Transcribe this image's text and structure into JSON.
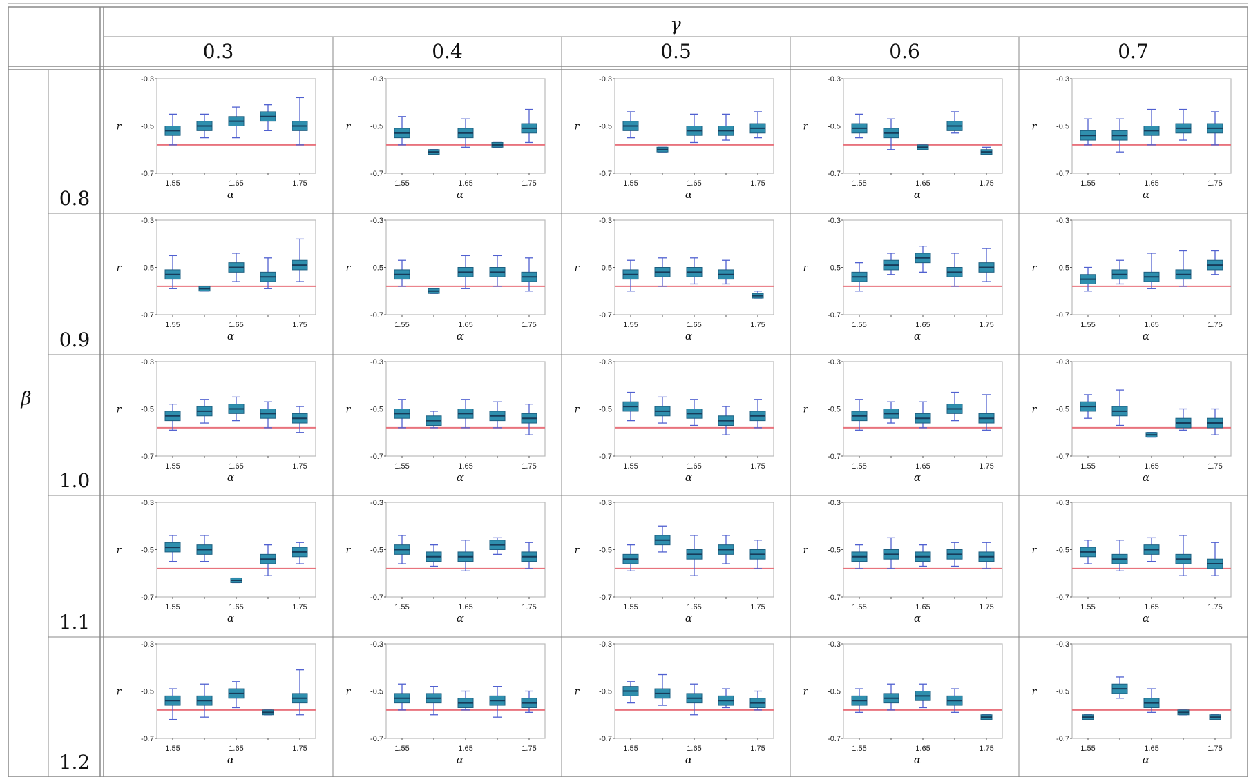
{
  "table": {
    "column_header_symbol": "γ",
    "row_header_symbol": "β",
    "gamma_values": [
      "0.3",
      "0.4",
      "0.5",
      "0.6",
      "0.7"
    ],
    "beta_values": [
      "0.8",
      "0.9",
      "1.0",
      "1.1",
      "1.2"
    ]
  },
  "chart_data": {
    "type": "box",
    "layout": "5x5 grid of small box plots (rows = β, columns = γ)",
    "panel_axes": {
      "xlabel": "α",
      "ylabel": "r",
      "x_ticks": [
        "1.55",
        "1.65",
        "1.75"
      ],
      "y_ticks": [
        "-0.3",
        "-0.5",
        "-0.7"
      ],
      "ylim": [
        -0.7,
        -0.3
      ],
      "x_categories": [
        1.55,
        1.6,
        1.65,
        1.7,
        1.75
      ],
      "reference_line": -0.58,
      "reference_line_color": "#e8737d",
      "box_color": "#2f8fae",
      "whisker_color": "#5060d0"
    },
    "panels": [
      {
        "beta": "0.8",
        "gamma": "0.3",
        "medians": [
          -0.52,
          -0.5,
          -0.48,
          -0.46,
          -0.5
        ],
        "box_half": [
          0.02,
          0.02,
          0.02,
          0.02,
          0.02
        ],
        "whisker_lo": [
          -0.58,
          -0.55,
          -0.55,
          -0.52,
          -0.58
        ],
        "whisker_hi": [
          -0.45,
          -0.45,
          -0.42,
          -0.41,
          -0.38
        ]
      },
      {
        "beta": "0.8",
        "gamma": "0.4",
        "medians": [
          -0.53,
          -0.61,
          -0.53,
          -0.58,
          -0.51
        ],
        "box_half": [
          0.02,
          0.01,
          0.02,
          0.01,
          0.02
        ],
        "whisker_lo": [
          -0.58,
          -0.62,
          -0.59,
          -0.59,
          -0.57
        ],
        "whisker_hi": [
          -0.46,
          -0.6,
          -0.47,
          -0.57,
          -0.43
        ]
      },
      {
        "beta": "0.8",
        "gamma": "0.5",
        "medians": [
          -0.5,
          -0.6,
          -0.52,
          -0.52,
          -0.51
        ],
        "box_half": [
          0.02,
          0.01,
          0.02,
          0.02,
          0.02
        ],
        "whisker_lo": [
          -0.55,
          -0.61,
          -0.57,
          -0.56,
          -0.55
        ],
        "whisker_hi": [
          -0.44,
          -0.59,
          -0.45,
          -0.45,
          -0.44
        ]
      },
      {
        "beta": "0.8",
        "gamma": "0.6",
        "medians": [
          -0.51,
          -0.53,
          -0.59,
          -0.5,
          -0.61
        ],
        "box_half": [
          0.02,
          0.02,
          0.01,
          0.02,
          0.01
        ],
        "whisker_lo": [
          -0.55,
          -0.6,
          -0.6,
          -0.53,
          -0.62
        ],
        "whisker_hi": [
          -0.45,
          -0.47,
          -0.58,
          -0.44,
          -0.59
        ]
      },
      {
        "beta": "0.8",
        "gamma": "0.7",
        "medians": [
          -0.54,
          -0.54,
          -0.52,
          -0.51,
          -0.51
        ],
        "box_half": [
          0.02,
          0.02,
          0.02,
          0.02,
          0.02
        ],
        "whisker_lo": [
          -0.58,
          -0.61,
          -0.58,
          -0.56,
          -0.58
        ],
        "whisker_hi": [
          -0.47,
          -0.47,
          -0.43,
          -0.43,
          -0.44
        ]
      },
      {
        "beta": "0.9",
        "gamma": "0.3",
        "medians": [
          -0.53,
          -0.59,
          -0.5,
          -0.54,
          -0.49
        ],
        "box_half": [
          0.02,
          0.01,
          0.02,
          0.02,
          0.02
        ],
        "whisker_lo": [
          -0.59,
          -0.6,
          -0.56,
          -0.59,
          -0.56
        ],
        "whisker_hi": [
          -0.45,
          -0.58,
          -0.44,
          -0.46,
          -0.38
        ]
      },
      {
        "beta": "0.9",
        "gamma": "0.4",
        "medians": [
          -0.53,
          -0.6,
          -0.52,
          -0.52,
          -0.54
        ],
        "box_half": [
          0.02,
          0.01,
          0.02,
          0.02,
          0.02
        ],
        "whisker_lo": [
          -0.58,
          -0.61,
          -0.59,
          -0.58,
          -0.6
        ],
        "whisker_hi": [
          -0.47,
          -0.59,
          -0.45,
          -0.45,
          -0.46
        ]
      },
      {
        "beta": "0.9",
        "gamma": "0.5",
        "medians": [
          -0.53,
          -0.52,
          -0.52,
          -0.53,
          -0.62
        ],
        "box_half": [
          0.02,
          0.02,
          0.02,
          0.02,
          0.01
        ],
        "whisker_lo": [
          -0.6,
          -0.58,
          -0.57,
          -0.57,
          -0.63
        ],
        "whisker_hi": [
          -0.47,
          -0.46,
          -0.46,
          -0.47,
          -0.6
        ]
      },
      {
        "beta": "0.9",
        "gamma": "0.6",
        "medians": [
          -0.54,
          -0.49,
          -0.46,
          -0.52,
          -0.5
        ],
        "box_half": [
          0.02,
          0.02,
          0.02,
          0.02,
          0.02
        ],
        "whisker_lo": [
          -0.6,
          -0.53,
          -0.52,
          -0.58,
          -0.56
        ],
        "whisker_hi": [
          -0.48,
          -0.44,
          -0.41,
          -0.44,
          -0.42
        ]
      },
      {
        "beta": "0.9",
        "gamma": "0.7",
        "medians": [
          -0.55,
          -0.53,
          -0.54,
          -0.53,
          -0.49
        ],
        "box_half": [
          0.02,
          0.02,
          0.02,
          0.02,
          0.02
        ],
        "whisker_lo": [
          -0.6,
          -0.57,
          -0.59,
          -0.58,
          -0.53
        ],
        "whisker_hi": [
          -0.5,
          -0.47,
          -0.44,
          -0.43,
          -0.43
        ]
      },
      {
        "beta": "1.0",
        "gamma": "0.3",
        "medians": [
          -0.53,
          -0.51,
          -0.5,
          -0.52,
          -0.54
        ],
        "box_half": [
          0.02,
          0.02,
          0.02,
          0.02,
          0.02
        ],
        "whisker_lo": [
          -0.59,
          -0.56,
          -0.55,
          -0.58,
          -0.6
        ],
        "whisker_hi": [
          -0.48,
          -0.46,
          -0.45,
          -0.47,
          -0.49
        ]
      },
      {
        "beta": "1.0",
        "gamma": "0.4",
        "medians": [
          -0.52,
          -0.55,
          -0.52,
          -0.53,
          -0.54
        ],
        "box_half": [
          0.02,
          0.02,
          0.02,
          0.02,
          0.02
        ],
        "whisker_lo": [
          -0.58,
          -0.58,
          -0.58,
          -0.58,
          -0.61
        ],
        "whisker_hi": [
          -0.46,
          -0.51,
          -0.46,
          -0.47,
          -0.48
        ]
      },
      {
        "beta": "1.0",
        "gamma": "0.5",
        "medians": [
          -0.49,
          -0.51,
          -0.52,
          -0.55,
          -0.53
        ],
        "box_half": [
          0.02,
          0.02,
          0.02,
          0.02,
          0.02
        ],
        "whisker_lo": [
          -0.55,
          -0.56,
          -0.57,
          -0.61,
          -0.58
        ],
        "whisker_hi": [
          -0.43,
          -0.45,
          -0.46,
          -0.49,
          -0.46
        ]
      },
      {
        "beta": "1.0",
        "gamma": "0.6",
        "medians": [
          -0.53,
          -0.52,
          -0.54,
          -0.5,
          -0.54
        ],
        "box_half": [
          0.02,
          0.02,
          0.02,
          0.02,
          0.02
        ],
        "whisker_lo": [
          -0.59,
          -0.56,
          -0.58,
          -0.55,
          -0.59
        ],
        "whisker_hi": [
          -0.46,
          -0.47,
          -0.47,
          -0.43,
          -0.44
        ]
      },
      {
        "beta": "1.0",
        "gamma": "0.7",
        "medians": [
          -0.49,
          -0.51,
          -0.61,
          -0.56,
          -0.56
        ],
        "box_half": [
          0.02,
          0.02,
          0.01,
          0.02,
          0.02
        ],
        "whisker_lo": [
          -0.54,
          -0.57,
          -0.62,
          -0.59,
          -0.61
        ],
        "whisker_hi": [
          -0.44,
          -0.42,
          -0.6,
          -0.5,
          -0.5
        ]
      },
      {
        "beta": "1.1",
        "gamma": "0.3",
        "medians": [
          -0.49,
          -0.5,
          -0.63,
          -0.54,
          -0.51
        ],
        "box_half": [
          0.02,
          0.02,
          0.01,
          0.02,
          0.02
        ],
        "whisker_lo": [
          -0.55,
          -0.55,
          -0.64,
          -0.61,
          -0.56
        ],
        "whisker_hi": [
          -0.44,
          -0.44,
          -0.62,
          -0.48,
          -0.47
        ]
      },
      {
        "beta": "1.1",
        "gamma": "0.4",
        "medians": [
          -0.5,
          -0.53,
          -0.53,
          -0.48,
          -0.53
        ],
        "box_half": [
          0.02,
          0.02,
          0.02,
          0.02,
          0.02
        ],
        "whisker_lo": [
          -0.56,
          -0.57,
          -0.59,
          -0.52,
          -0.58
        ],
        "whisker_hi": [
          -0.44,
          -0.48,
          -0.46,
          -0.45,
          -0.47
        ]
      },
      {
        "beta": "1.1",
        "gamma": "0.5",
        "medians": [
          -0.54,
          -0.46,
          -0.52,
          -0.5,
          -0.52
        ],
        "box_half": [
          0.02,
          0.02,
          0.02,
          0.02,
          0.02
        ],
        "whisker_lo": [
          -0.59,
          -0.51,
          -0.61,
          -0.56,
          -0.58
        ],
        "whisker_hi": [
          -0.48,
          -0.4,
          -0.44,
          -0.44,
          -0.46
        ]
      },
      {
        "beta": "1.1",
        "gamma": "0.6",
        "medians": [
          -0.53,
          -0.52,
          -0.53,
          -0.52,
          -0.53
        ],
        "box_half": [
          0.02,
          0.02,
          0.02,
          0.02,
          0.02
        ],
        "whisker_lo": [
          -0.58,
          -0.58,
          -0.57,
          -0.57,
          -0.58
        ],
        "whisker_hi": [
          -0.48,
          -0.45,
          -0.48,
          -0.47,
          -0.47
        ]
      },
      {
        "beta": "1.1",
        "gamma": "0.7",
        "medians": [
          -0.51,
          -0.54,
          -0.5,
          -0.54,
          -0.56
        ],
        "box_half": [
          0.02,
          0.02,
          0.02,
          0.02,
          0.02
        ],
        "whisker_lo": [
          -0.56,
          -0.59,
          -0.55,
          -0.61,
          -0.61
        ],
        "whisker_hi": [
          -0.46,
          -0.46,
          -0.45,
          -0.44,
          -0.47
        ]
      },
      {
        "beta": "1.2",
        "gamma": "0.3",
        "medians": [
          -0.54,
          -0.54,
          -0.51,
          -0.59,
          -0.53
        ],
        "box_half": [
          0.02,
          0.02,
          0.02,
          0.01,
          0.02
        ],
        "whisker_lo": [
          -0.62,
          -0.61,
          -0.57,
          -0.6,
          -0.6
        ],
        "whisker_hi": [
          -0.49,
          -0.47,
          -0.46,
          -0.58,
          -0.41
        ]
      },
      {
        "beta": "1.2",
        "gamma": "0.4",
        "medians": [
          -0.53,
          -0.53,
          -0.55,
          -0.54,
          -0.55
        ],
        "box_half": [
          0.02,
          0.02,
          0.02,
          0.02,
          0.02
        ],
        "whisker_lo": [
          -0.58,
          -0.6,
          -0.58,
          -0.61,
          -0.59
        ],
        "whisker_hi": [
          -0.47,
          -0.48,
          -0.5,
          -0.48,
          -0.5
        ]
      },
      {
        "beta": "1.2",
        "gamma": "0.5",
        "medians": [
          -0.5,
          -0.51,
          -0.53,
          -0.54,
          -0.55
        ],
        "box_half": [
          0.02,
          0.02,
          0.02,
          0.02,
          0.02
        ],
        "whisker_lo": [
          -0.55,
          -0.56,
          -0.6,
          -0.57,
          -0.58
        ],
        "whisker_hi": [
          -0.46,
          -0.43,
          -0.47,
          -0.49,
          -0.5
        ]
      },
      {
        "beta": "1.2",
        "gamma": "0.6",
        "medians": [
          -0.54,
          -0.53,
          -0.52,
          -0.54,
          -0.61
        ],
        "box_half": [
          0.02,
          0.02,
          0.02,
          0.02,
          0.01
        ],
        "whisker_lo": [
          -0.59,
          -0.58,
          -0.57,
          -0.59,
          -0.62
        ],
        "whisker_hi": [
          -0.49,
          -0.47,
          -0.47,
          -0.49,
          -0.6
        ]
      },
      {
        "beta": "1.2",
        "gamma": "0.7",
        "medians": [
          -0.61,
          -0.49,
          -0.55,
          -0.59,
          -0.61
        ],
        "box_half": [
          0.01,
          0.02,
          0.02,
          0.01,
          0.01
        ],
        "whisker_lo": [
          -0.62,
          -0.53,
          -0.59,
          -0.6,
          -0.62
        ],
        "whisker_hi": [
          -0.6,
          -0.44,
          -0.49,
          -0.58,
          -0.6
        ]
      }
    ]
  }
}
